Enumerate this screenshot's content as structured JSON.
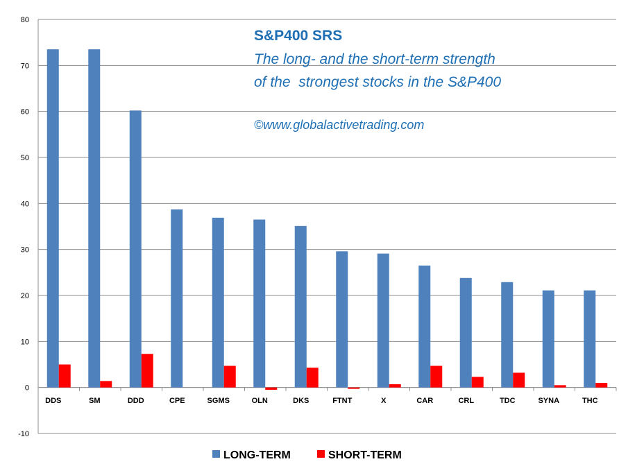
{
  "chart_data": {
    "type": "bar",
    "title": "S&P400 SRS",
    "subtitle_lines": [
      "The long- and the short-term strength",
      "of the  strongest stocks in the S&P400"
    ],
    "annotation": "©www.globalactivetrading.com",
    "categories": [
      "DDS",
      "SM",
      "DDD",
      "CPE",
      "SGMS",
      "OLN",
      "DKS",
      "FTNT",
      "X",
      "CAR",
      "CRL",
      "TDC",
      "SYNA",
      "THC"
    ],
    "series": [
      {
        "name": "LONG-TERM",
        "color": "#4f81bd",
        "values": [
          73.5,
          73.5,
          60.2,
          38.7,
          36.9,
          36.5,
          35.1,
          29.6,
          29.1,
          26.5,
          23.8,
          22.9,
          21.1,
          21.1
        ]
      },
      {
        "name": "SHORT-TERM",
        "color": "#ff0000",
        "values": [
          5.0,
          1.4,
          7.3,
          0.0,
          4.7,
          -0.5,
          4.3,
          -0.3,
          0.7,
          4.7,
          2.3,
          3.2,
          0.5,
          1.0
        ]
      }
    ],
    "ylim": [
      -10,
      80
    ],
    "yticks": [
      "-10",
      "0",
      "10",
      "20",
      "30",
      "40",
      "50",
      "60",
      "70",
      "80"
    ],
    "ytick_values": [
      -10,
      0,
      10,
      20,
      30,
      40,
      50,
      60,
      70,
      80
    ],
    "xlabel": "",
    "ylabel": "",
    "grid": true,
    "legend_position": "bottom-center"
  }
}
